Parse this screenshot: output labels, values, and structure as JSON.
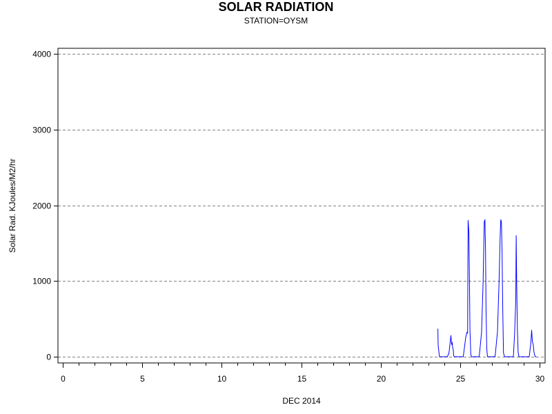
{
  "chart_data": {
    "type": "line",
    "title": "SOLAR RADIATION",
    "subtitle": "STATION=OYSM",
    "xlabel": "DEC 2014",
    "ylabel": "Solar Rad. KJoules/M2/hr",
    "xlim": [
      0,
      30
    ],
    "ylim": [
      0,
      4000
    ],
    "x_ticks": [
      0,
      5,
      10,
      15,
      20,
      25,
      30
    ],
    "y_ticks": [
      0,
      1000,
      2000,
      3000,
      4000
    ],
    "grid": "horizontal dashed",
    "line_color": "#0000ff",
    "series": [
      {
        "x": [
          23.6,
          23.62,
          23.7,
          23.8,
          24.0,
          24.2,
          24.3,
          24.42,
          24.44,
          24.47,
          24.5,
          24.53,
          24.57,
          24.6,
          24.65,
          24.8,
          25.0,
          25.2,
          25.35,
          25.42,
          25.47,
          25.5,
          25.55,
          25.58,
          25.62,
          25.67,
          25.72,
          25.8,
          26.0,
          26.2,
          26.35,
          26.45,
          26.52,
          26.56,
          26.6,
          26.63,
          26.68,
          26.72,
          26.8,
          27.0,
          27.2,
          27.35,
          27.45,
          27.52,
          27.56,
          27.6,
          27.64,
          27.68,
          27.73,
          27.8,
          28.0,
          28.2,
          28.35,
          28.43,
          28.5,
          28.53,
          28.56,
          28.6,
          28.65,
          28.7,
          28.8,
          29.0,
          29.2,
          29.35,
          29.45,
          29.5,
          29.55,
          29.6,
          29.65,
          29.72,
          29.8
        ],
        "y": [
          370,
          150,
          0,
          0,
          0,
          0,
          50,
          280,
          230,
          160,
          190,
          120,
          90,
          10,
          0,
          0,
          0,
          0,
          250,
          320,
          310,
          1800,
          1650,
          1150,
          360,
          30,
          0,
          0,
          0,
          0,
          320,
          1000,
          1780,
          1810,
          1400,
          630,
          100,
          0,
          0,
          0,
          0,
          330,
          1000,
          1600,
          1810,
          1780,
          1400,
          640,
          50,
          0,
          0,
          0,
          0,
          300,
          750,
          1600,
          1000,
          380,
          60,
          0,
          0,
          0,
          0,
          0,
          180,
          350,
          200,
          160,
          60,
          0,
          0
        ]
      }
    ]
  }
}
